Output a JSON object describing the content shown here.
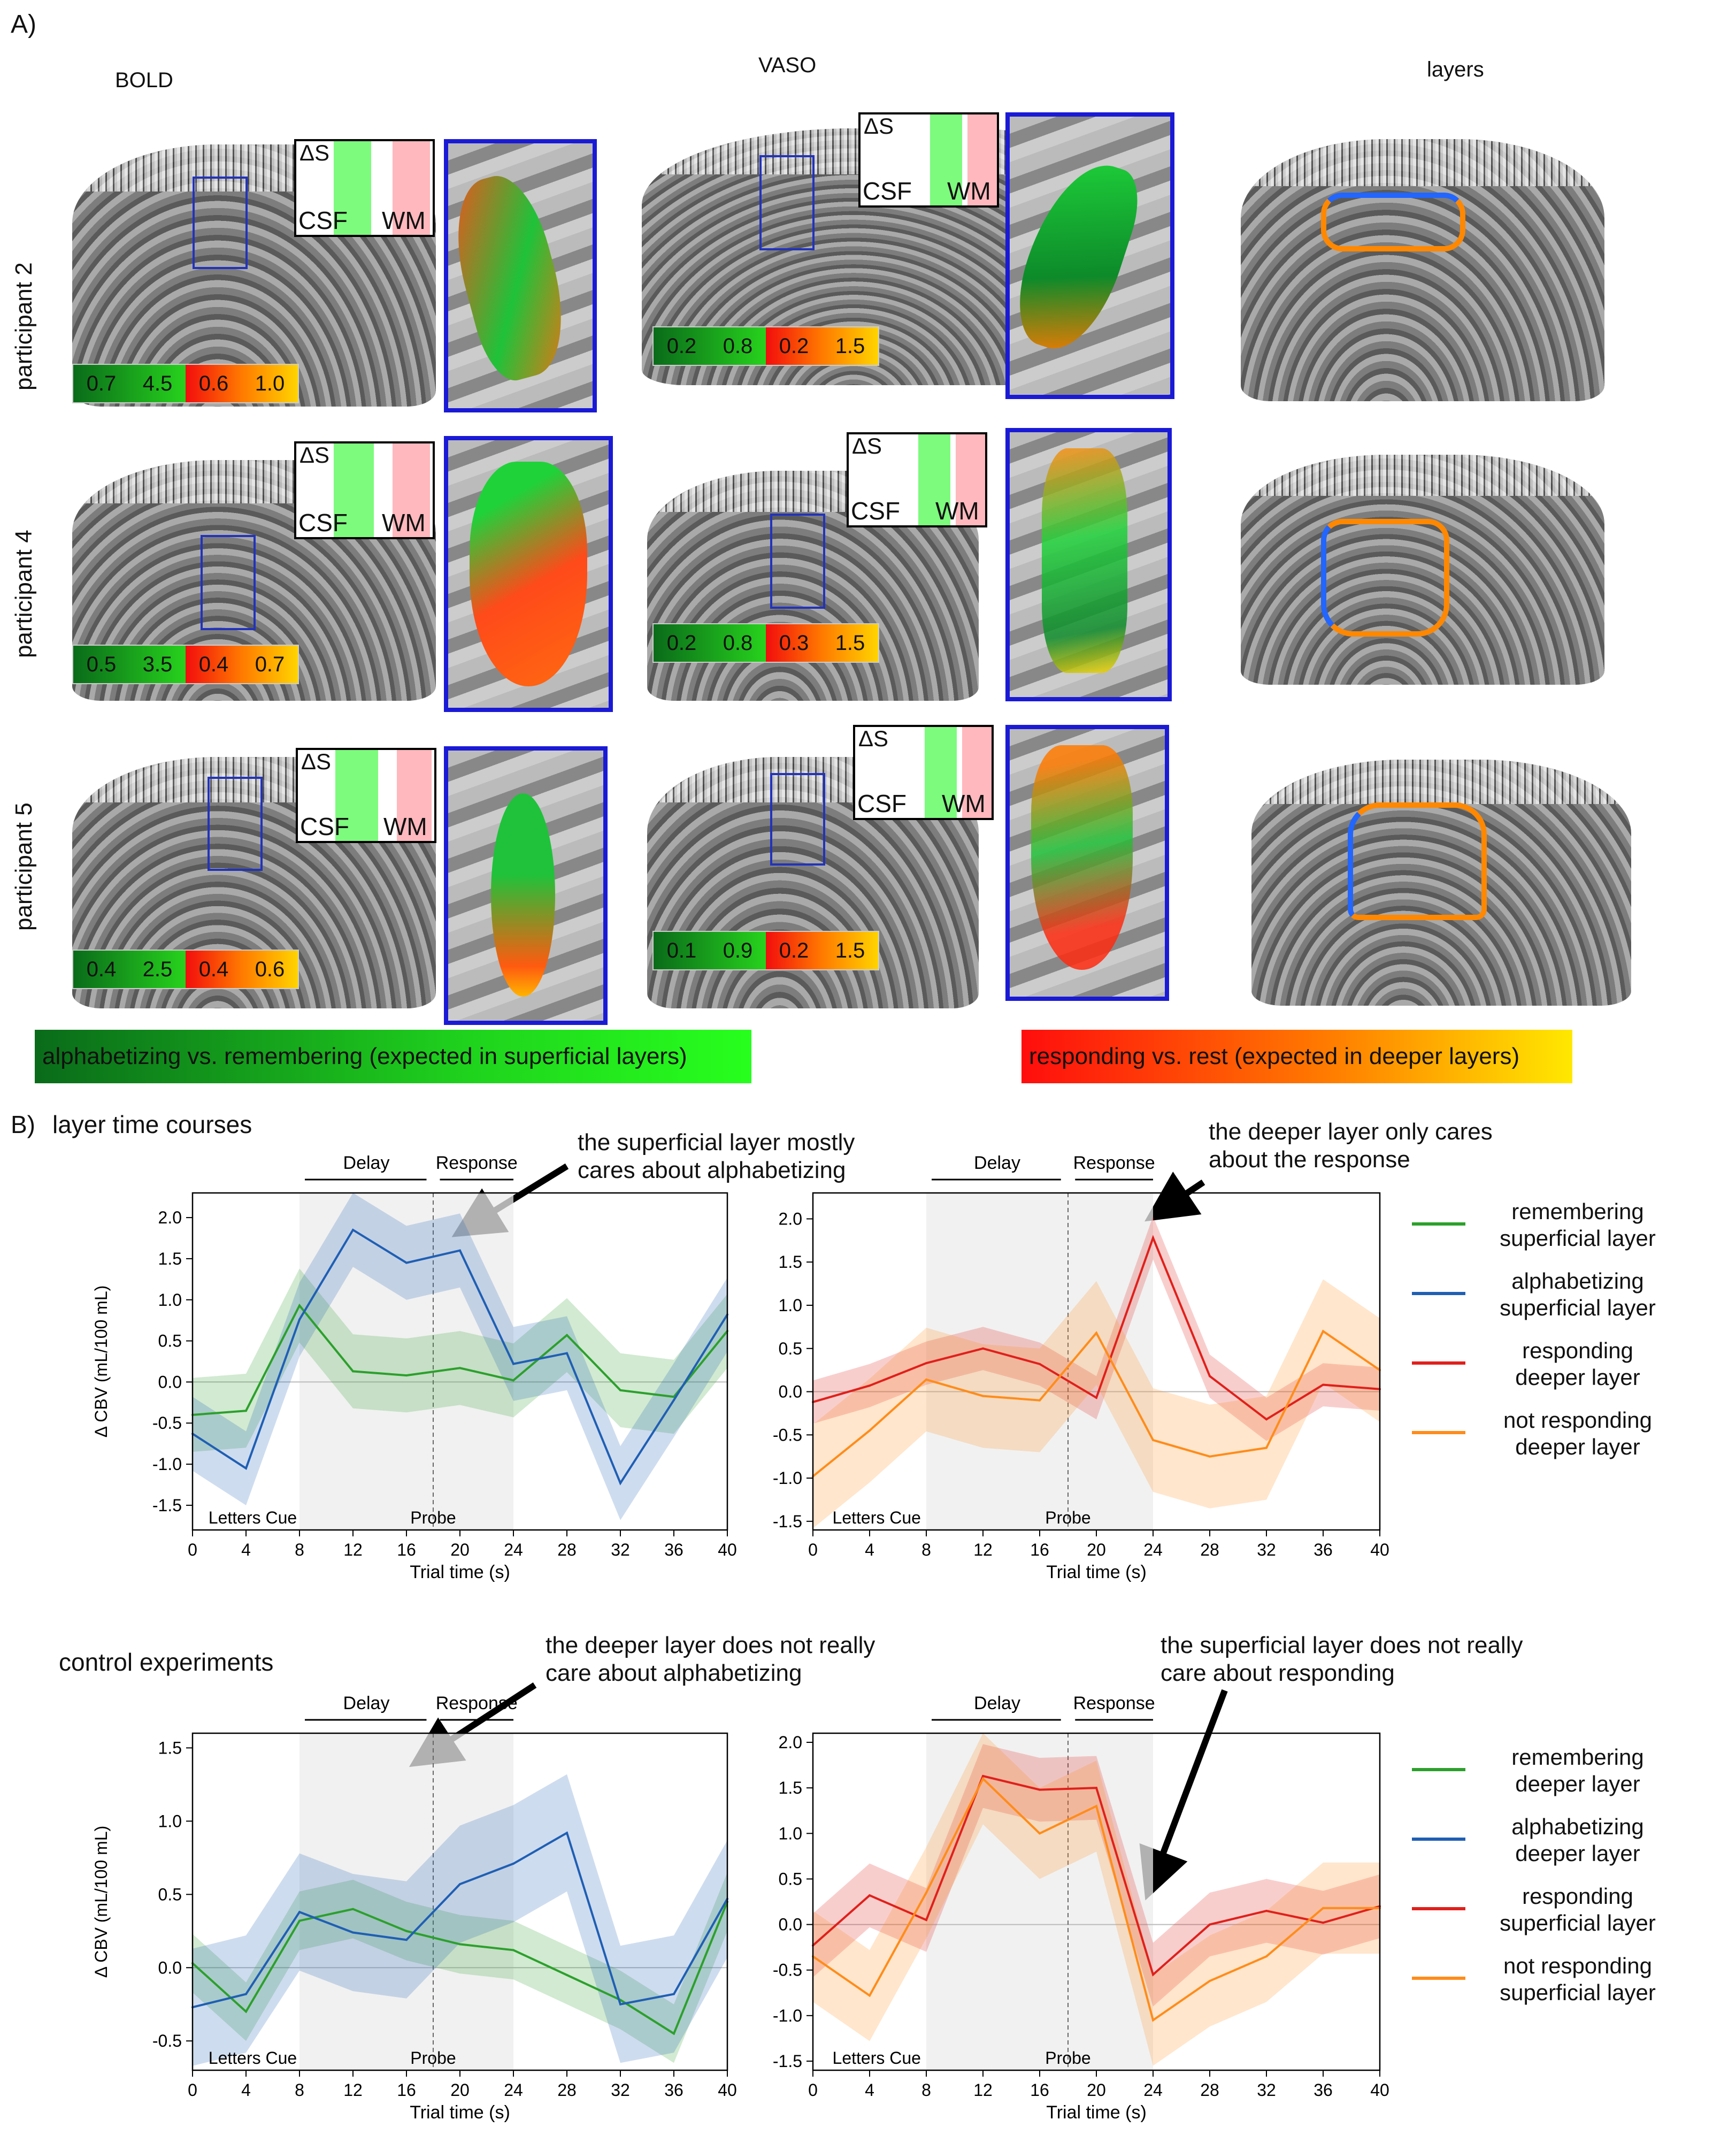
{
  "panel_a": {
    "label": "A)",
    "columns": {
      "bold": "BOLD",
      "vaso": "VASO",
      "layers": "layers"
    },
    "rows": [
      "participant 2",
      "participant 4",
      "participant 5"
    ],
    "inset": {
      "ds": "ΔS",
      "csf": "CSF",
      "wm": "WM"
    },
    "colorbars": {
      "bold": [
        [
          "0.7",
          "4.5",
          "0.6",
          "1.0"
        ],
        [
          "0.5",
          "3.5",
          "0.4",
          "0.7"
        ],
        [
          "0.4",
          "2.5",
          "0.4",
          "0.6"
        ]
      ],
      "vaso": [
        [
          "0.2",
          "0.8",
          "0.2",
          "1.5"
        ],
        [
          "0.2",
          "0.8",
          "0.3",
          "1.5"
        ],
        [
          "0.1",
          "0.9",
          "0.2",
          "1.5"
        ]
      ]
    },
    "legend_green": "alphabetizing vs. remembering (expected in superficial layers)",
    "legend_red": "responding vs. rest (expected in deeper layers)"
  },
  "panel_b": {
    "label": "B)",
    "title": "layer time courses",
    "control_title": "control experiments",
    "annotations": {
      "a1": "the superficial layer mostly\ncares about alphabetizing",
      "a2": "the deeper layer only cares\nabout the response",
      "a3": "the deeper layer does not really\ncare about alphabetizing",
      "a4": "the superficial layer does not really\ncare about responding"
    },
    "legend_top": [
      {
        "label": "remembering\nsuperficial layer",
        "color": "#2ca02c"
      },
      {
        "label": "alphabetizing\nsuperficial layer",
        "color": "#1f5fb4"
      },
      {
        "label": "responding\ndeeper layer",
        "color": "#e0201b"
      },
      {
        "label": "not responding\ndeeper layer",
        "color": "#ff8c1a"
      }
    ],
    "legend_bottom": [
      {
        "label": "remembering\ndeeper layer",
        "color": "#2ca02c"
      },
      {
        "label": "alphabetizing\ndeeper layer",
        "color": "#1f5fb4"
      },
      {
        "label": "responding\nsuperficial layer",
        "color": "#e0201b"
      },
      {
        "label": "not responding\nsuperficial layer",
        "color": "#ff8c1a"
      }
    ]
  },
  "chart_data": [
    {
      "type": "line",
      "ylabel": "Δ CBV (mL/100 mL)",
      "xlabel": "Trial time (s)",
      "xlim": [
        0,
        40
      ],
      "ylim": [
        -1.8,
        2.3
      ],
      "xticks": [
        0,
        4,
        8,
        12,
        16,
        20,
        24,
        28,
        32,
        36,
        40
      ],
      "yticks": [
        -1.5,
        -1.0,
        -0.5,
        0.0,
        0.5,
        1.0,
        1.5,
        2.0
      ],
      "phases": {
        "delay": "Delay",
        "response": "Response",
        "letters_cue": "Letters Cue",
        "probe": "Probe"
      },
      "x": [
        0,
        4,
        8,
        12,
        16,
        20,
        24,
        28,
        32,
        36,
        40
      ],
      "series": [
        {
          "color": "#2ca02c",
          "band": 0.45,
          "values": [
            -0.4,
            -0.35,
            0.93,
            0.13,
            0.08,
            0.17,
            0.02,
            0.57,
            -0.1,
            -0.18,
            0.62
          ]
        },
        {
          "color": "#1f5fb4",
          "band": 0.45,
          "values": [
            -0.63,
            -1.05,
            0.76,
            1.85,
            1.45,
            1.6,
            0.22,
            0.35,
            -1.23,
            -0.22,
            0.82
          ]
        }
      ]
    },
    {
      "type": "line",
      "ylabel": "",
      "xlabel": "Trial time (s)",
      "xlim": [
        0,
        40
      ],
      "ylim": [
        -1.6,
        2.3
      ],
      "xticks": [
        0,
        4,
        8,
        12,
        16,
        20,
        24,
        28,
        32,
        36,
        40
      ],
      "yticks": [
        -1.5,
        -1.0,
        -0.5,
        0.0,
        0.5,
        1.0,
        1.5,
        2.0
      ],
      "phases": {
        "delay": "Delay",
        "response": "Response",
        "letters_cue": "Letters Cue",
        "probe": "Probe"
      },
      "x": [
        0,
        4,
        8,
        12,
        16,
        20,
        24,
        28,
        32,
        36,
        40
      ],
      "series": [
        {
          "color": "#e0201b",
          "band": 0.25,
          "values": [
            -0.12,
            0.07,
            0.33,
            0.5,
            0.32,
            -0.07,
            1.78,
            0.18,
            -0.32,
            0.08,
            0.03
          ]
        },
        {
          "color": "#ff8c1a",
          "band": 0.6,
          "values": [
            -0.98,
            -0.45,
            0.14,
            -0.05,
            -0.1,
            0.68,
            -0.56,
            -0.75,
            -0.65,
            0.7,
            0.25
          ]
        }
      ]
    },
    {
      "type": "line",
      "ylabel": "Δ CBV (mL/100 mL)",
      "xlabel": "Trial time (s)",
      "xlim": [
        0,
        40
      ],
      "ylim": [
        -0.7,
        1.6
      ],
      "xticks": [
        0,
        4,
        8,
        12,
        16,
        20,
        24,
        28,
        32,
        36,
        40
      ],
      "yticks": [
        -0.5,
        0.0,
        0.5,
        1.0,
        1.5
      ],
      "phases": {
        "delay": "Delay",
        "response": "Response",
        "letters_cue": "Letters Cue",
        "probe": "Probe"
      },
      "x": [
        0,
        4,
        8,
        12,
        16,
        20,
        24,
        28,
        32,
        36,
        40
      ],
      "series": [
        {
          "color": "#2ca02c",
          "band": 0.2,
          "values": [
            0.03,
            -0.3,
            0.32,
            0.4,
            0.25,
            0.16,
            0.12,
            -0.05,
            -0.22,
            -0.45,
            0.45
          ]
        },
        {
          "color": "#1f5fb4",
          "band": 0.4,
          "values": [
            -0.27,
            -0.18,
            0.38,
            0.24,
            0.19,
            0.57,
            0.71,
            0.92,
            -0.25,
            -0.18,
            0.47
          ]
        }
      ]
    },
    {
      "type": "line",
      "ylabel": "",
      "xlabel": "Trial time (s)",
      "xlim": [
        0,
        40
      ],
      "ylim": [
        -1.6,
        2.1
      ],
      "xticks": [
        0,
        4,
        8,
        12,
        16,
        20,
        24,
        28,
        32,
        36,
        40
      ],
      "yticks": [
        -1.5,
        -1.0,
        -0.5,
        0.0,
        0.5,
        1.0,
        1.5,
        2.0
      ],
      "phases": {
        "delay": "Delay",
        "response": "Response",
        "letters_cue": "Letters Cue",
        "probe": "Probe"
      },
      "x": [
        0,
        4,
        8,
        12,
        16,
        20,
        24,
        28,
        32,
        36,
        40
      ],
      "series": [
        {
          "color": "#e0201b",
          "band": 0.35,
          "values": [
            -0.23,
            0.32,
            0.05,
            1.63,
            1.48,
            1.5,
            -0.55,
            0.0,
            0.15,
            0.02,
            0.2
          ]
        },
        {
          "color": "#ff8c1a",
          "band": 0.5,
          "values": [
            -0.35,
            -0.78,
            0.35,
            1.6,
            1.0,
            1.3,
            -1.05,
            -0.62,
            -0.35,
            0.18,
            0.18
          ]
        }
      ]
    }
  ]
}
